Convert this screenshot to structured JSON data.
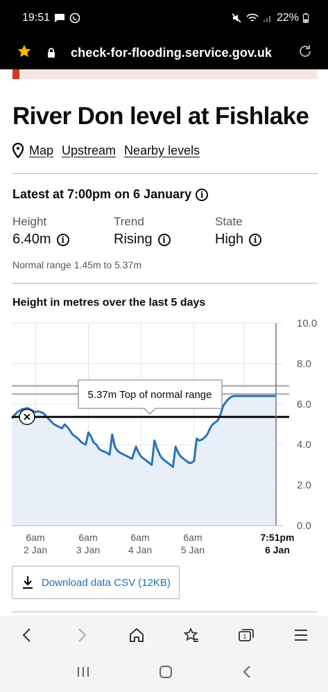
{
  "status_bar": {
    "time": "19:51",
    "battery": "22%"
  },
  "browser": {
    "url": "check-for-flooding.service.gov.uk"
  },
  "page": {
    "title": "River Don level at Fishlake",
    "links": {
      "map": "Map",
      "upstream": "Upstream",
      "nearby": "Nearby levels"
    },
    "latest": "Latest at 7:00pm on 6 January",
    "stats": [
      {
        "label": "Height",
        "value": "6.40m"
      },
      {
        "label": "Trend",
        "value": "Rising"
      },
      {
        "label": "State",
        "value": "High"
      }
    ],
    "normal_range": "Normal range 1.45m to 5.37m",
    "chart_title": "Height in metres over the last 5 days",
    "download": "Download data CSV (12KB)"
  },
  "chart_data": {
    "type": "area",
    "y_ticks": [
      "10.0",
      "8.0",
      "6.0",
      "4.0",
      "2.0",
      "0.0"
    ],
    "ylim": [
      0,
      10
    ],
    "x_ticks": [
      {
        "line1": "6am",
        "line2": "2 Jan",
        "bold": false
      },
      {
        "line1": "6am",
        "line2": "3 Jan",
        "bold": false
      },
      {
        "line1": "6am",
        "line2": "4 Jan",
        "bold": false
      },
      {
        "line1": "6am",
        "line2": "5 Jan",
        "bold": false
      },
      {
        "line1": "7:51pm",
        "line2": "6 Jan",
        "bold": true
      }
    ],
    "thresholds": [
      {
        "value": 6.9,
        "color": "#b1b4b6"
      },
      {
        "value": 6.5,
        "color": "#b1b4b6"
      },
      {
        "value": 5.37,
        "color": "#0b0c0c"
      }
    ],
    "tooltip": "5.37m Top of normal range",
    "series": [
      {
        "color": "#2b73b8",
        "fill": "#e8eff8",
        "x": [
          0.0,
          0.02,
          0.04,
          0.06,
          0.075,
          0.09,
          0.1,
          0.11,
          0.12,
          0.13,
          0.145,
          0.16,
          0.175,
          0.19,
          0.2,
          0.215,
          0.23,
          0.25,
          0.265,
          0.28,
          0.29,
          0.3,
          0.31,
          0.32,
          0.33,
          0.34,
          0.36,
          0.37,
          0.38,
          0.39,
          0.4,
          0.41,
          0.425,
          0.44,
          0.455,
          0.47,
          0.48,
          0.49,
          0.5,
          0.51,
          0.52,
          0.53,
          0.54,
          0.55,
          0.56,
          0.57,
          0.58,
          0.59,
          0.6,
          0.61,
          0.62,
          0.63,
          0.64,
          0.65,
          0.66,
          0.67,
          0.68,
          0.69,
          0.7,
          0.71,
          0.72,
          0.73,
          0.74,
          0.75,
          0.76,
          0.77,
          0.78,
          0.79,
          0.8,
          0.81,
          0.82,
          0.83,
          0.84,
          0.85,
          0.86,
          0.87,
          0.88,
          0.89,
          0.9,
          0.91,
          0.92,
          0.93,
          0.94,
          0.95,
          0.96,
          0.97,
          0.98,
          0.99,
          1.0
        ],
        "y": [
          5.3,
          5.6,
          5.75,
          5.8,
          5.7,
          5.6,
          5.65,
          5.6,
          5.55,
          5.4,
          5.2,
          5.0,
          4.9,
          4.8,
          5.0,
          4.8,
          4.5,
          4.3,
          4.1,
          4.0,
          4.6,
          4.4,
          4.1,
          4.0,
          3.8,
          3.7,
          3.6,
          3.5,
          4.5,
          3.9,
          3.7,
          3.6,
          3.5,
          3.4,
          3.3,
          3.9,
          3.6,
          3.4,
          3.3,
          3.2,
          3.1,
          3.0,
          4.2,
          3.8,
          3.5,
          3.3,
          3.2,
          3.1,
          3.0,
          2.9,
          3.9,
          3.6,
          3.4,
          3.3,
          3.2,
          3.1,
          3.1,
          3.2,
          4.3,
          4.2,
          4.25,
          4.35,
          4.5,
          4.8,
          5.0,
          5.1,
          5.2,
          5.5,
          5.9,
          6.1,
          6.25,
          6.35,
          6.4,
          6.4,
          6.4,
          6.4,
          6.4,
          6.4,
          6.4,
          6.4,
          6.4,
          6.4,
          6.4,
          6.4,
          6.4,
          6.4,
          6.4,
          6.4,
          6.4
        ]
      }
    ]
  }
}
